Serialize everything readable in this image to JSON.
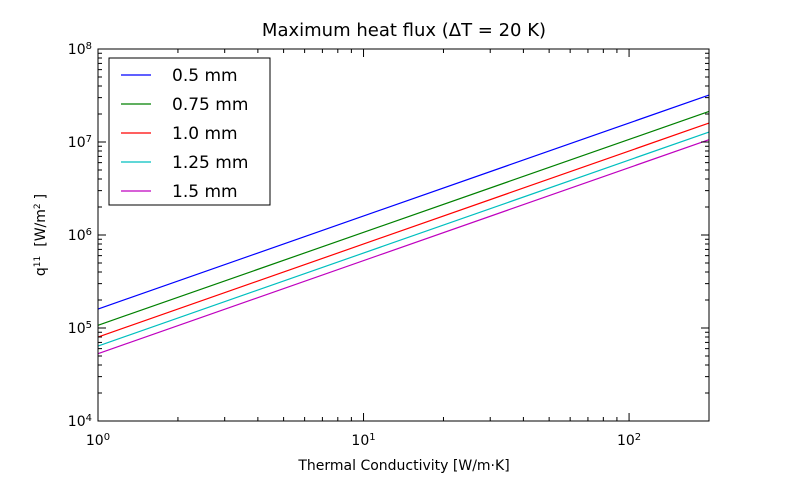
{
  "chart_data": {
    "type": "line",
    "title": "Maximum heat flux (ΔT = 20 K)",
    "xlabel": "Thermal Conductivity [W/m·K]",
    "ylabel": {
      "main": "q",
      "sup": "11",
      "unit_left": "[W/m",
      "unit_sup": "2",
      "unit_right": "]"
    },
    "xscale": "log",
    "yscale": "log",
    "xlim": [
      1,
      200
    ],
    "ylim": [
      10000,
      100000000
    ],
    "x_ticks": [
      {
        "value": 1,
        "base": "10",
        "exp": "0"
      },
      {
        "value": 10,
        "base": "10",
        "exp": "1"
      },
      {
        "value": 100,
        "base": "10",
        "exp": "2"
      }
    ],
    "y_ticks": [
      {
        "value": 10000,
        "base": "10",
        "exp": "4"
      },
      {
        "value": 100000,
        "base": "10",
        "exp": "5"
      },
      {
        "value": 1000000,
        "base": "10",
        "exp": "6"
      },
      {
        "value": 10000000,
        "base": "10",
        "exp": "7"
      },
      {
        "value": 100000000,
        "base": "10",
        "exp": "8"
      }
    ],
    "grid": false,
    "legend_position": "top-left",
    "series": [
      {
        "name": "0.5 mm",
        "color": "#0000ff",
        "x": [
          1,
          200
        ],
        "y": [
          160000,
          32000000
        ]
      },
      {
        "name": "0.75 mm",
        "color": "#008000",
        "x": [
          1,
          200
        ],
        "y": [
          107000,
          21300000
        ]
      },
      {
        "name": "1.0 mm",
        "color": "#ff0000",
        "x": [
          1,
          200
        ],
        "y": [
          80000,
          16000000
        ]
      },
      {
        "name": "1.25 mm",
        "color": "#00bfbf",
        "x": [
          1,
          200
        ],
        "y": [
          64000,
          12800000
        ]
      },
      {
        "name": "1.5 mm",
        "color": "#bf00bf",
        "x": [
          1,
          200
        ],
        "y": [
          53000,
          10600000
        ]
      }
    ]
  }
}
